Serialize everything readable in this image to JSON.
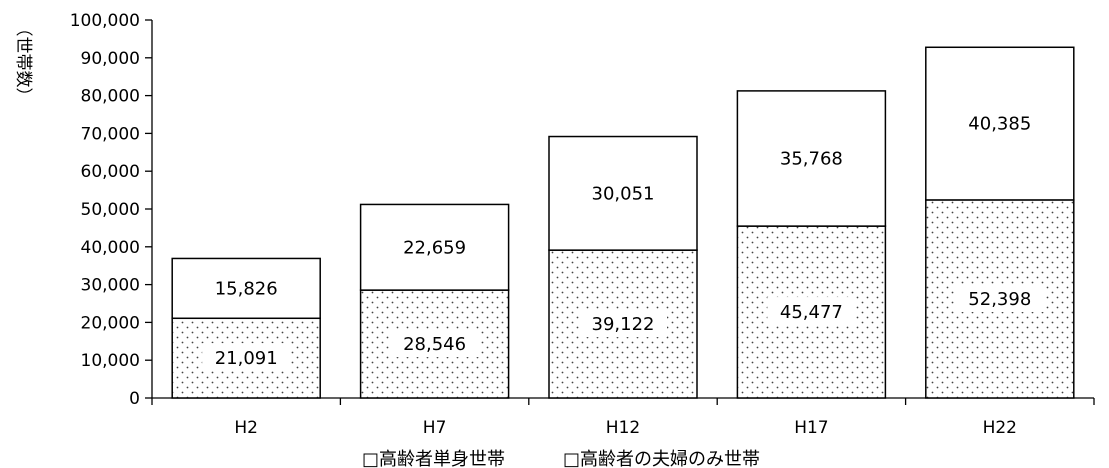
{
  "chart_data": {
    "type": "bar",
    "stacked": true,
    "categories": [
      "H2",
      "H7",
      "H12",
      "H17",
      "H22"
    ],
    "series": [
      {
        "name": "高齢者単身世帯",
        "values": [
          21091,
          28546,
          39122,
          45477,
          52398
        ],
        "pattern": "dots"
      },
      {
        "name": "高齢者の夫婦のみ世帯",
        "values": [
          15826,
          22659,
          30051,
          35768,
          40385
        ],
        "pattern": "none"
      }
    ],
    "value_labels": [
      [
        "21,091",
        "28,546",
        "39,122",
        "45,477",
        "52,398"
      ],
      [
        "15,826",
        "22,659",
        "30,051",
        "35,768",
        "40,385"
      ]
    ],
    "ylim": [
      0,
      100000
    ],
    "yticks": [
      0,
      10000,
      20000,
      30000,
      40000,
      50000,
      60000,
      70000,
      80000,
      90000,
      100000
    ],
    "ytick_labels": [
      "0",
      "10,000",
      "20,000",
      "30,000",
      "40,000",
      "50,000",
      "60,000",
      "70,000",
      "80,000",
      "90,000",
      "100,000"
    ],
    "ylabel": "（世帯数）",
    "legend": {
      "position": "bottom",
      "marker": "□",
      "labels": [
        "高齢者単身世帯",
        "高齢者の夫婦のみ世帯"
      ]
    },
    "grid": false
  }
}
